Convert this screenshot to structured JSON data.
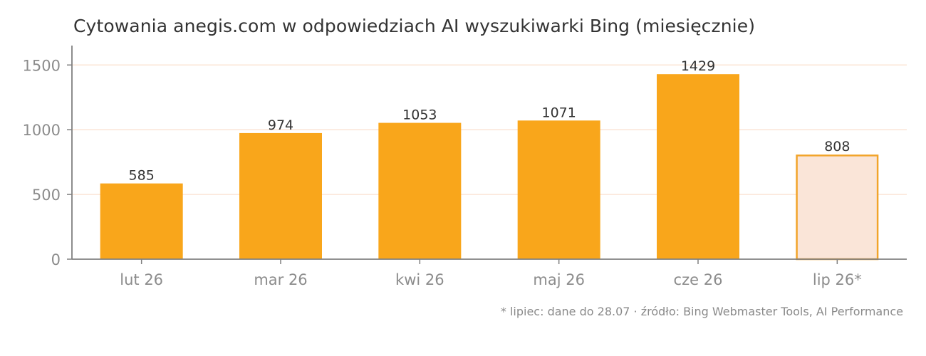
{
  "chart_data": {
    "type": "bar",
    "title": "Cytowania anegis.com w odpowiedziach AI wyszukiwarki Bing (miesięcznie)",
    "categories": [
      "lut 26",
      "mar 26",
      "kwi 26",
      "maj 26",
      "cze 26",
      "lip 26*"
    ],
    "values": [
      585,
      974,
      1053,
      1071,
      1429,
      808
    ],
    "partial": [
      false,
      false,
      false,
      false,
      false,
      true
    ],
    "xlabel": "",
    "ylabel": "",
    "ylim": [
      0,
      1650
    ],
    "yticks": [
      0,
      500,
      1000,
      1500
    ],
    "grid": true,
    "colors": {
      "bar": "#f9a61b",
      "partial_fill": "#fae5d8",
      "partial_stroke": "#f2a42a",
      "grid": "#fbe5d6",
      "axis": "#808080"
    }
  },
  "footnote": "* lipiec: dane do 28.07  ·  źródło: Bing Webmaster Tools, AI Performance"
}
